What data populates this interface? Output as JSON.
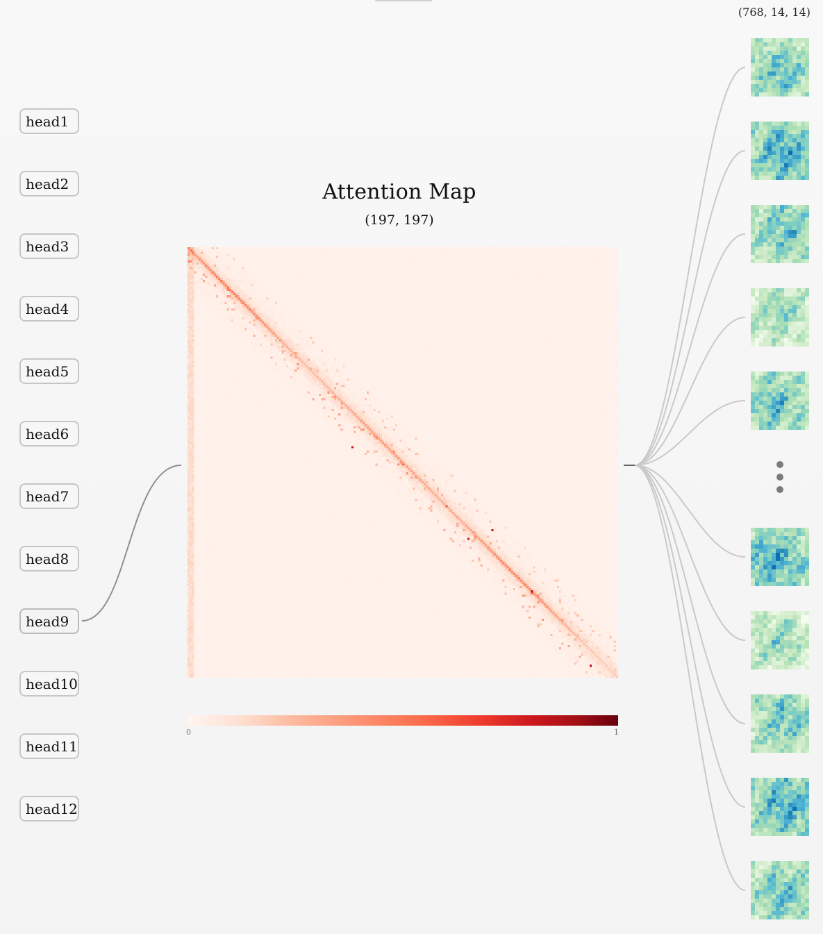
{
  "heads": [
    {
      "label": "head1"
    },
    {
      "label": "head2"
    },
    {
      "label": "head3"
    },
    {
      "label": "head4"
    },
    {
      "label": "head5"
    },
    {
      "label": "head6"
    },
    {
      "label": "head7"
    },
    {
      "label": "head8"
    },
    {
      "label": "head9"
    },
    {
      "label": "head10"
    },
    {
      "label": "head11"
    },
    {
      "label": "head12"
    }
  ],
  "selected_head": "head9",
  "attention": {
    "title": "Attention Map",
    "shape": "(197, 197)",
    "colorbar": {
      "min": "0",
      "max": "1",
      "colormap": "Reds"
    }
  },
  "features": {
    "shape": "(768, 14, 14)",
    "visible_maps": 10,
    "colormap": "GnBu"
  }
}
